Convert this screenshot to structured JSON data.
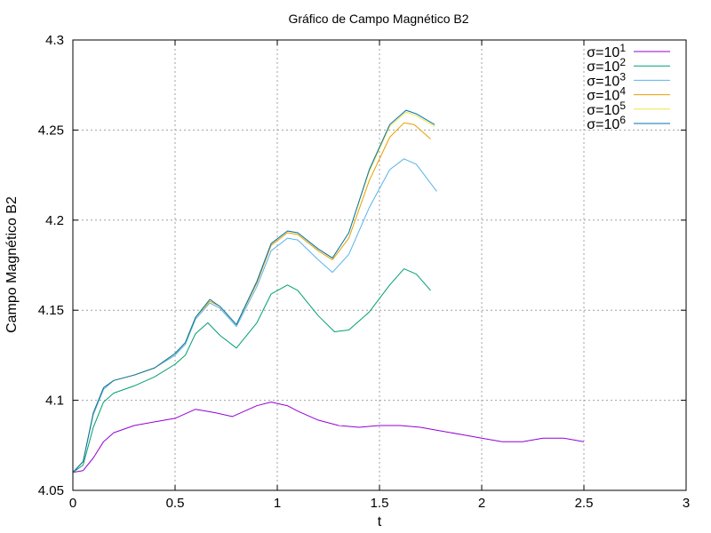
{
  "chart_data": {
    "type": "line",
    "title": "Gráfico de Campo Magnético B2",
    "xlabel": "t",
    "ylabel": "Campo Magnético B2",
    "xlim": [
      0,
      3
    ],
    "ylim": [
      4.05,
      4.3
    ],
    "x_ticks": [
      "0",
      "0.5",
      "1",
      "1.5",
      "2",
      "2.5",
      "3"
    ],
    "y_ticks": [
      "4.05",
      "4.1",
      "4.15",
      "4.2",
      "4.25",
      "4.3"
    ],
    "grid": true,
    "legend_position": "top-right",
    "series": [
      {
        "name": "σ=10^1",
        "name_base": "σ=10",
        "name_exp": "1",
        "color": "#9400d3",
        "points": [
          [
            0,
            4.06
          ],
          [
            0.05,
            4.061
          ],
          [
            0.1,
            4.068
          ],
          [
            0.15,
            4.077
          ],
          [
            0.2,
            4.082
          ],
          [
            0.3,
            4.086
          ],
          [
            0.4,
            4.088
          ],
          [
            0.5,
            4.09
          ],
          [
            0.6,
            4.095
          ],
          [
            0.7,
            4.093
          ],
          [
            0.78,
            4.091
          ],
          [
            0.9,
            4.097
          ],
          [
            0.97,
            4.099
          ],
          [
            1.05,
            4.097
          ],
          [
            1.1,
            4.094
          ],
          [
            1.2,
            4.089
          ],
          [
            1.3,
            4.086
          ],
          [
            1.4,
            4.085
          ],
          [
            1.5,
            4.086
          ],
          [
            1.6,
            4.086
          ],
          [
            1.7,
            4.085
          ],
          [
            1.8,
            4.083
          ],
          [
            1.9,
            4.081
          ],
          [
            2.0,
            4.079
          ],
          [
            2.1,
            4.077
          ],
          [
            2.2,
            4.077
          ],
          [
            2.3,
            4.079
          ],
          [
            2.4,
            4.079
          ],
          [
            2.5,
            4.077
          ]
        ]
      },
      {
        "name": "σ=10^2",
        "name_base": "σ=10",
        "name_exp": "2",
        "color": "#009e73",
        "points": [
          [
            0,
            4.06
          ],
          [
            0.05,
            4.064
          ],
          [
            0.1,
            4.085
          ],
          [
            0.15,
            4.099
          ],
          [
            0.2,
            4.104
          ],
          [
            0.3,
            4.108
          ],
          [
            0.4,
            4.113
          ],
          [
            0.5,
            4.12
          ],
          [
            0.55,
            4.125
          ],
          [
            0.6,
            4.137
          ],
          [
            0.66,
            4.143
          ],
          [
            0.72,
            4.136
          ],
          [
            0.8,
            4.129
          ],
          [
            0.9,
            4.143
          ],
          [
            0.97,
            4.159
          ],
          [
            1.05,
            4.164
          ],
          [
            1.1,
            4.161
          ],
          [
            1.2,
            4.147
          ],
          [
            1.28,
            4.138
          ],
          [
            1.35,
            4.139
          ],
          [
            1.45,
            4.149
          ],
          [
            1.55,
            4.164
          ],
          [
            1.62,
            4.173
          ],
          [
            1.68,
            4.17
          ],
          [
            1.75,
            4.161
          ]
        ]
      },
      {
        "name": "σ=10^3",
        "name_base": "σ=10",
        "name_exp": "3",
        "color": "#56b4e9",
        "points": [
          [
            0,
            4.06
          ],
          [
            0.05,
            4.066
          ],
          [
            0.1,
            4.092
          ],
          [
            0.15,
            4.106
          ],
          [
            0.2,
            4.111
          ],
          [
            0.3,
            4.114
          ],
          [
            0.4,
            4.118
          ],
          [
            0.5,
            4.125
          ],
          [
            0.55,
            4.131
          ],
          [
            0.6,
            4.145
          ],
          [
            0.67,
            4.154
          ],
          [
            0.72,
            4.151
          ],
          [
            0.8,
            4.141
          ],
          [
            0.9,
            4.163
          ],
          [
            0.97,
            4.183
          ],
          [
            1.05,
            4.19
          ],
          [
            1.1,
            4.189
          ],
          [
            1.2,
            4.178
          ],
          [
            1.27,
            4.171
          ],
          [
            1.35,
            4.181
          ],
          [
            1.45,
            4.207
          ],
          [
            1.55,
            4.228
          ],
          [
            1.62,
            4.234
          ],
          [
            1.68,
            4.231
          ],
          [
            1.78,
            4.216
          ]
        ]
      },
      {
        "name": "σ=10^4",
        "name_base": "σ=10",
        "name_exp": "4",
        "color": "#e69f00",
        "points": [
          [
            0,
            4.06
          ],
          [
            0.05,
            4.066
          ],
          [
            0.1,
            4.093
          ],
          [
            0.15,
            4.107
          ],
          [
            0.2,
            4.111
          ],
          [
            0.3,
            4.114
          ],
          [
            0.4,
            4.118
          ],
          [
            0.5,
            4.126
          ],
          [
            0.55,
            4.132
          ],
          [
            0.6,
            4.146
          ],
          [
            0.67,
            4.155
          ],
          [
            0.72,
            4.152
          ],
          [
            0.8,
            4.142
          ],
          [
            0.9,
            4.165
          ],
          [
            0.97,
            4.186
          ],
          [
            1.05,
            4.193
          ],
          [
            1.1,
            4.192
          ],
          [
            1.2,
            4.183
          ],
          [
            1.27,
            4.178
          ],
          [
            1.35,
            4.19
          ],
          [
            1.45,
            4.222
          ],
          [
            1.55,
            4.246
          ],
          [
            1.62,
            4.254
          ],
          [
            1.67,
            4.253
          ],
          [
            1.75,
            4.245
          ]
        ]
      },
      {
        "name": "σ=10^5",
        "name_base": "σ=10",
        "name_exp": "5",
        "color": "#f0e442",
        "points": [
          [
            0,
            4.06
          ],
          [
            0.05,
            4.066
          ],
          [
            0.1,
            4.093
          ],
          [
            0.15,
            4.107
          ],
          [
            0.2,
            4.111
          ],
          [
            0.3,
            4.114
          ],
          [
            0.4,
            4.118
          ],
          [
            0.5,
            4.126
          ],
          [
            0.55,
            4.132
          ],
          [
            0.6,
            4.146
          ],
          [
            0.67,
            4.156
          ],
          [
            0.72,
            4.152
          ],
          [
            0.8,
            4.142
          ],
          [
            0.9,
            4.166
          ],
          [
            0.97,
            4.187
          ],
          [
            1.05,
            4.194
          ],
          [
            1.1,
            4.193
          ],
          [
            1.2,
            4.184
          ],
          [
            1.27,
            4.179
          ],
          [
            1.35,
            4.193
          ],
          [
            1.45,
            4.227
          ],
          [
            1.55,
            4.252
          ],
          [
            1.63,
            4.26
          ],
          [
            1.68,
            4.258
          ],
          [
            1.77,
            4.252
          ]
        ]
      },
      {
        "name": "σ=10^6",
        "name_base": "σ=10",
        "name_exp": "6",
        "color": "#0072b2",
        "points": [
          [
            0,
            4.06
          ],
          [
            0.05,
            4.066
          ],
          [
            0.1,
            4.093
          ],
          [
            0.15,
            4.107
          ],
          [
            0.2,
            4.111
          ],
          [
            0.3,
            4.114
          ],
          [
            0.4,
            4.118
          ],
          [
            0.5,
            4.126
          ],
          [
            0.55,
            4.132
          ],
          [
            0.6,
            4.146
          ],
          [
            0.67,
            4.156
          ],
          [
            0.72,
            4.152
          ],
          [
            0.8,
            4.142
          ],
          [
            0.9,
            4.166
          ],
          [
            0.97,
            4.187
          ],
          [
            1.05,
            4.194
          ],
          [
            1.1,
            4.193
          ],
          [
            1.2,
            4.184
          ],
          [
            1.27,
            4.179
          ],
          [
            1.35,
            4.193
          ],
          [
            1.45,
            4.228
          ],
          [
            1.55,
            4.253
          ],
          [
            1.63,
            4.261
          ],
          [
            1.68,
            4.259
          ],
          [
            1.77,
            4.253
          ]
        ]
      }
    ]
  }
}
